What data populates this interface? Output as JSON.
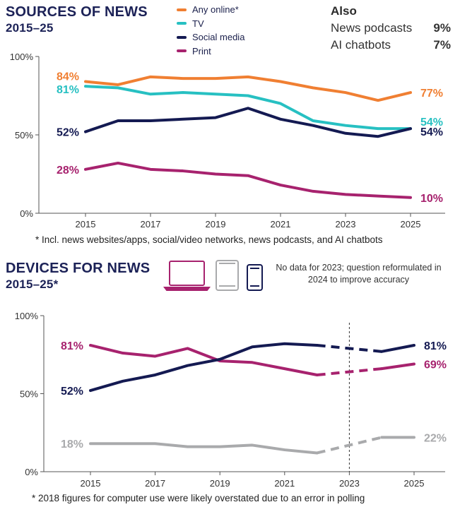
{
  "charts": [
    {
      "title": "SOURCES OF NEWS",
      "subtitle": "2015–25",
      "footnote": "* Incl. news websites/apps, social/video networks, news podcasts, and AI chatbots"
    },
    {
      "title": "DEVICES FOR NEWS",
      "subtitle": "2015–25*",
      "note": "No data for 2023; question reformulated in 2024 to improve accuracy",
      "footnote": "* 2018 figures for computer use were likely overstated due to an error in polling"
    }
  ],
  "also": {
    "title": "Also",
    "items": [
      {
        "label": "News podcasts",
        "value": "9%"
      },
      {
        "label": "AI chatbots",
        "value": "7%"
      }
    ]
  },
  "colors": {
    "orange": "#f07f32",
    "teal": "#27c0c2",
    "navy": "#141a52",
    "magenta": "#a7226e",
    "grey": "#a9aaac",
    "axis": "#333333"
  },
  "icons": [
    "laptop-icon",
    "tablet-icon",
    "smartphone-icon"
  ],
  "chart_data": [
    {
      "type": "line",
      "title": "SOURCES OF NEWS",
      "x": [
        2015,
        2016,
        2017,
        2018,
        2019,
        2020,
        2021,
        2022,
        2023,
        2024,
        2025
      ],
      "xticks": [
        2015,
        2017,
        2019,
        2021,
        2023,
        2025
      ],
      "yticks": [
        {
          "v": 0,
          "label": "0%"
        },
        {
          "v": 50,
          "label": "50%"
        },
        {
          "v": 100,
          "label": "100%"
        }
      ],
      "ylim": [
        0,
        100
      ],
      "legend_position": "top-center",
      "series": [
        {
          "name": "Any online*",
          "color": "#f07f32",
          "values": [
            84,
            82,
            87,
            86,
            86,
            87,
            84,
            80,
            77,
            72,
            77
          ],
          "start_label": "84%",
          "end_label": "77%"
        },
        {
          "name": "TV",
          "color": "#27c0c2",
          "values": [
            81,
            80,
            76,
            77,
            76,
            75,
            70,
            59,
            56,
            54,
            54
          ],
          "start_label": "81%",
          "end_label": "54%"
        },
        {
          "name": "Social media",
          "color": "#141a52",
          "values": [
            52,
            59,
            59,
            60,
            61,
            67,
            60,
            56,
            51,
            49,
            54
          ],
          "start_label": "52%",
          "end_label": "54%"
        },
        {
          "name": "Print",
          "color": "#a7226e",
          "values": [
            28,
            32,
            28,
            27,
            25,
            24,
            18,
            14,
            12,
            11,
            10
          ],
          "start_label": "28%",
          "end_label": "10%"
        }
      ]
    },
    {
      "type": "line",
      "title": "DEVICES FOR NEWS",
      "x": [
        2015,
        2016,
        2017,
        2018,
        2019,
        2020,
        2021,
        2022,
        2024,
        2025
      ],
      "xticks": [
        2015,
        2017,
        2019,
        2021,
        2023,
        2025
      ],
      "yticks": [
        {
          "v": 0,
          "label": "0%"
        },
        {
          "v": 50,
          "label": "50%"
        },
        {
          "v": 100,
          "label": "100%"
        }
      ],
      "ylim": [
        0,
        100
      ],
      "gap_year": 2023,
      "series": [
        {
          "name": "Computer",
          "color": "#a7226e",
          "values": [
            81,
            76,
            74,
            79,
            71,
            70,
            66,
            62,
            66,
            69
          ],
          "start_label": "81%",
          "end_label": "69%"
        },
        {
          "name": "Smartphone",
          "color": "#141a52",
          "values": [
            52,
            58,
            62,
            68,
            72,
            80,
            82,
            81,
            77,
            81
          ],
          "start_label": "52%",
          "end_label": "81%"
        },
        {
          "name": "Tablet",
          "color": "#a9aaac",
          "values": [
            18,
            18,
            18,
            16,
            16,
            17,
            14,
            12,
            22,
            22
          ],
          "start_label": "18%",
          "end_label": "22%"
        }
      ]
    }
  ]
}
